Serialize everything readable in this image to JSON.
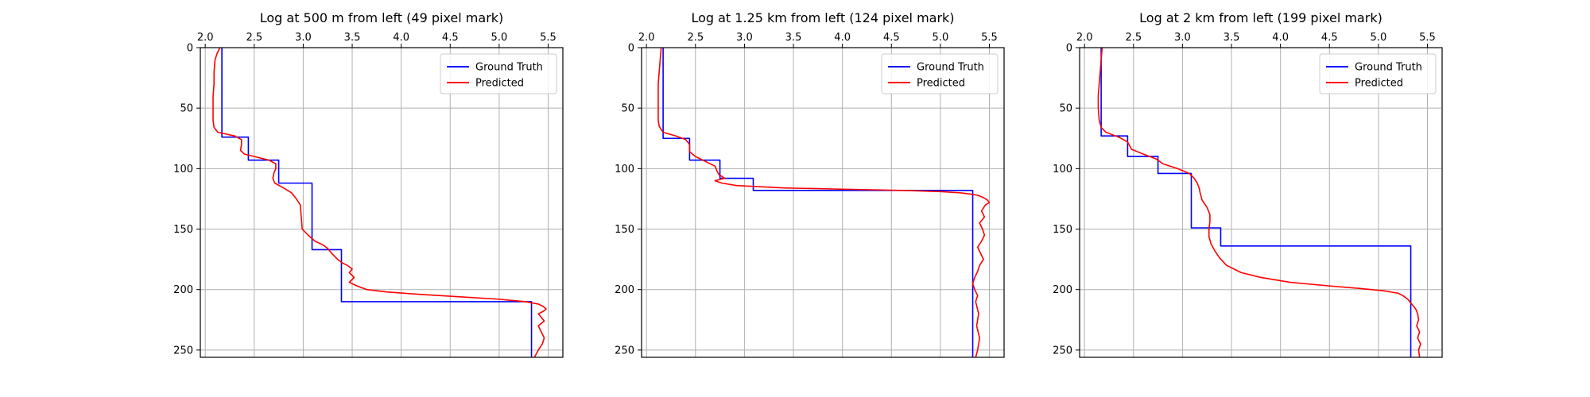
{
  "chart_data": [
    {
      "type": "line",
      "title": "Log at 500 m from left (49 pixel mark)",
      "xlabel": "",
      "ylabel": "",
      "xlim": [
        1.95,
        5.65
      ],
      "ylim": [
        256,
        0
      ],
      "x_axis_position": "top",
      "xticks": [
        2.0,
        2.5,
        3.0,
        3.5,
        4.0,
        4.5,
        5.0,
        5.5
      ],
      "xtick_labels": [
        "2.0",
        "2.5",
        "3.0",
        "3.5",
        "4.0",
        "4.5",
        "5.0",
        "5.5"
      ],
      "yticks": [
        0,
        50,
        100,
        150,
        200,
        250
      ],
      "ytick_labels": [
        "0",
        "50",
        "100",
        "150",
        "200",
        "250"
      ],
      "grid": true,
      "legend_position": "top-right",
      "series": [
        {
          "name": "Ground Truth",
          "color": "#0000ff",
          "depth": [
            0,
            72,
            72,
            74,
            74,
            93,
            93,
            112,
            112,
            167,
            167,
            210,
            210,
            256
          ],
          "value": [
            2.17,
            2.17,
            2.17,
            2.17,
            2.44,
            2.44,
            2.75,
            2.75,
            3.09,
            3.09,
            3.39,
            3.39,
            5.33,
            5.33
          ]
        },
        {
          "name": "Predicted",
          "color": "#ff0000",
          "depth": [
            0,
            5,
            10,
            20,
            30,
            40,
            50,
            60,
            66,
            70,
            73,
            76,
            80,
            85,
            88,
            90,
            93,
            96,
            100,
            104,
            108,
            112,
            116,
            120,
            125,
            130,
            140,
            150,
            155,
            160,
            163,
            166,
            170,
            175,
            178,
            180,
            183,
            186,
            190,
            194,
            197,
            200,
            202,
            204,
            206,
            208,
            210,
            212,
            214,
            216,
            218,
            220,
            223,
            226,
            230,
            235,
            240,
            245,
            250,
            256
          ],
          "value": [
            2.15,
            2.12,
            2.1,
            2.09,
            2.09,
            2.08,
            2.08,
            2.08,
            2.09,
            2.13,
            2.3,
            2.37,
            2.37,
            2.36,
            2.4,
            2.5,
            2.65,
            2.72,
            2.72,
            2.7,
            2.69,
            2.71,
            2.8,
            2.88,
            2.93,
            2.97,
            2.98,
            2.99,
            3.05,
            3.12,
            3.2,
            3.25,
            3.29,
            3.35,
            3.4,
            3.45,
            3.5,
            3.47,
            3.52,
            3.47,
            3.55,
            3.65,
            3.85,
            4.2,
            4.6,
            5.0,
            5.27,
            5.4,
            5.45,
            5.48,
            5.45,
            5.4,
            5.43,
            5.46,
            5.4,
            5.43,
            5.46,
            5.44,
            5.4,
            5.36
          ]
        }
      ]
    },
    {
      "type": "line",
      "title": "Log at 1.25 km from left (124 pixel mark)",
      "xlabel": "",
      "ylabel": "",
      "xlim": [
        1.95,
        5.65
      ],
      "ylim": [
        256,
        0
      ],
      "x_axis_position": "top",
      "xticks": [
        2.0,
        2.5,
        3.0,
        3.5,
        4.0,
        4.5,
        5.0,
        5.5
      ],
      "xtick_labels": [
        "2.0",
        "2.5",
        "3.0",
        "3.5",
        "4.0",
        "4.5",
        "5.0",
        "5.5"
      ],
      "yticks": [
        0,
        50,
        100,
        150,
        200,
        250
      ],
      "ytick_labels": [
        "0",
        "50",
        "100",
        "150",
        "200",
        "250"
      ],
      "grid": true,
      "legend_position": "top-right",
      "series": [
        {
          "name": "Ground Truth",
          "color": "#0000ff",
          "depth": [
            0,
            75,
            75,
            93,
            93,
            108,
            108,
            118,
            118,
            256
          ],
          "value": [
            2.17,
            2.17,
            2.44,
            2.44,
            2.75,
            2.75,
            3.09,
            3.09,
            5.33,
            5.33
          ]
        },
        {
          "name": "Predicted",
          "color": "#ff0000",
          "depth": [
            0,
            10,
            20,
            30,
            40,
            50,
            60,
            65,
            70,
            73,
            76,
            80,
            86,
            90,
            94,
            98,
            102,
            105,
            108,
            110,
            112,
            114,
            116,
            117,
            118,
            119,
            120,
            121,
            122,
            124,
            126,
            128,
            130,
            135,
            140,
            145,
            150,
            155,
            160,
            165,
            170,
            175,
            180,
            185,
            190,
            195,
            200,
            205,
            210,
            220,
            230,
            240,
            250,
            256
          ],
          "value": [
            2.15,
            2.14,
            2.13,
            2.12,
            2.12,
            2.12,
            2.12,
            2.13,
            2.17,
            2.3,
            2.4,
            2.44,
            2.44,
            2.5,
            2.6,
            2.7,
            2.72,
            2.74,
            2.8,
            2.7,
            2.77,
            2.92,
            3.4,
            4.0,
            4.6,
            5.0,
            5.2,
            5.3,
            5.38,
            5.44,
            5.48,
            5.5,
            5.46,
            5.42,
            5.45,
            5.4,
            5.43,
            5.45,
            5.42,
            5.38,
            5.41,
            5.44,
            5.4,
            5.38,
            5.35,
            5.33,
            5.35,
            5.38,
            5.36,
            5.39,
            5.37,
            5.4,
            5.38,
            5.36
          ]
        }
      ]
    },
    {
      "type": "line",
      "title": "Log at 2 km from left (199 pixel mark)",
      "xlabel": "",
      "ylabel": "",
      "xlim": [
        1.95,
        5.65
      ],
      "ylim": [
        256,
        0
      ],
      "x_axis_position": "top",
      "xticks": [
        2.0,
        2.5,
        3.0,
        3.5,
        4.0,
        4.5,
        5.0,
        5.5
      ],
      "xtick_labels": [
        "2.0",
        "2.5",
        "3.0",
        "3.5",
        "4.0",
        "4.5",
        "5.0",
        "5.5"
      ],
      "yticks": [
        0,
        50,
        100,
        150,
        200,
        250
      ],
      "ytick_labels": [
        "0",
        "50",
        "100",
        "150",
        "200",
        "250"
      ],
      "grid": true,
      "legend_position": "top-right",
      "series": [
        {
          "name": "Ground Truth",
          "color": "#0000ff",
          "depth": [
            0,
            73,
            73,
            90,
            90,
            104,
            104,
            149,
            149,
            164,
            164,
            256
          ],
          "value": [
            2.17,
            2.17,
            2.44,
            2.44,
            2.75,
            2.75,
            3.09,
            3.09,
            3.39,
            3.39,
            5.33,
            5.33
          ]
        },
        {
          "name": "Predicted",
          "color": "#ff0000",
          "depth": [
            0,
            10,
            20,
            30,
            40,
            50,
            60,
            66,
            70,
            74,
            78,
            84,
            88,
            92,
            96,
            100,
            104,
            108,
            112,
            116,
            120,
            126,
            132,
            138,
            144,
            150,
            156,
            162,
            168,
            174,
            180,
            186,
            190,
            194,
            197,
            199,
            201,
            203,
            205,
            208,
            212,
            216,
            220,
            225,
            230,
            235,
            240,
            245,
            250,
            256
          ],
          "value": [
            2.18,
            2.17,
            2.16,
            2.15,
            2.14,
            2.14,
            2.15,
            2.17,
            2.22,
            2.35,
            2.44,
            2.48,
            2.6,
            2.73,
            2.8,
            2.95,
            3.07,
            3.12,
            3.15,
            3.17,
            3.18,
            3.2,
            3.25,
            3.28,
            3.28,
            3.27,
            3.27,
            3.29,
            3.33,
            3.38,
            3.45,
            3.6,
            3.8,
            4.1,
            4.5,
            4.8,
            5.05,
            5.2,
            5.25,
            5.3,
            5.34,
            5.38,
            5.4,
            5.41,
            5.39,
            5.42,
            5.4,
            5.43,
            5.41,
            5.42
          ]
        }
      ]
    }
  ]
}
